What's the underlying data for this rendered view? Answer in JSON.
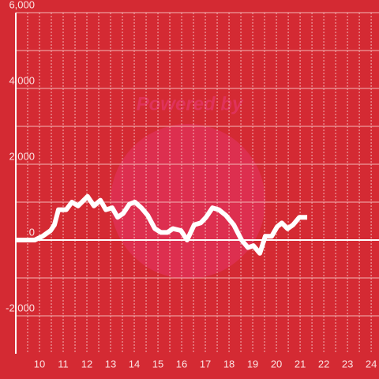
{
  "chart_data": {
    "type": "line",
    "watermark": "Powered by",
    "x": [
      9.0,
      9.8,
      10.13,
      10.47,
      10.63,
      10.8,
      11.13,
      11.37,
      11.63,
      12.03,
      12.3,
      12.57,
      12.8,
      13.07,
      13.3,
      13.53,
      13.8,
      14.03,
      14.3,
      14.57,
      14.87,
      15.13,
      15.4,
      15.63,
      15.97,
      16.23,
      16.53,
      16.8,
      17.03,
      17.3,
      17.57,
      17.87,
      18.2,
      18.53,
      18.8,
      19.03,
      19.3,
      19.53,
      19.8,
      20.03,
      20.23,
      20.47,
      20.7,
      20.97,
      21.3
    ],
    "series": [
      {
        "color": "#ffffff",
        "values": [
          0,
          0,
          100,
          250,
          400,
          800,
          800,
          1000,
          900,
          1150,
          900,
          1050,
          800,
          850,
          600,
          700,
          950,
          1000,
          850,
          650,
          300,
          200,
          200,
          300,
          250,
          0,
          400,
          450,
          600,
          850,
          800,
          650,
          400,
          0,
          -200,
          -150,
          -350,
          100,
          100,
          350,
          450,
          300,
          400,
          600,
          600
        ]
      }
    ],
    "xlim": [
      9,
      24.33
    ],
    "xticks": [
      10,
      11,
      12,
      13,
      14,
      15,
      16,
      17,
      18,
      19,
      20,
      21,
      22,
      23,
      24
    ],
    "ylim": [
      -3000,
      6000
    ],
    "yticks": [
      {
        "value": -2000,
        "label": "-2,000"
      },
      0,
      {
        "value": 2000,
        "label": "2,000"
      },
      {
        "value": 4000,
        "label": "4,000"
      },
      {
        "value": 6000,
        "label": "6,000"
      }
    ],
    "grid": true
  }
}
